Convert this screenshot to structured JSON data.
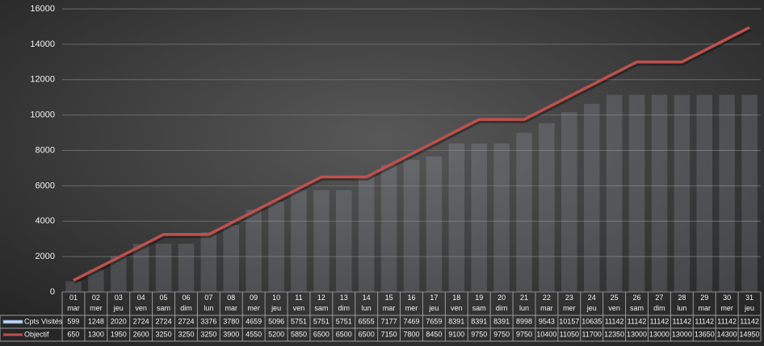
{
  "chart_data": {
    "type": "bar-line",
    "categories": [
      "01 mar",
      "02 mer",
      "03 jeu",
      "04 ven",
      "05 sam",
      "06 dim",
      "07 lun",
      "08 mar",
      "09 mer",
      "10 jeu",
      "11 ven",
      "12 sam",
      "13 dim",
      "14 lun",
      "15 mar",
      "16 mer",
      "17 jeu",
      "18 ven",
      "19 sam",
      "20 dim",
      "21 lun",
      "22 mar",
      "23 mer",
      "24 jeu",
      "25 ven",
      "26 sam",
      "27 dim",
      "28 lun",
      "29 mar",
      "30 mer",
      "31 jeu"
    ],
    "series": [
      {
        "name": "Cpts Visités",
        "type": "bar",
        "color": "#c9d6e6",
        "values": [
          599,
          1248,
          2020,
          2724,
          2724,
          2724,
          3376,
          3780,
          4659,
          5096,
          5751,
          5751,
          5751,
          6555,
          7177,
          7469,
          7659,
          8391,
          8391,
          8391,
          8998,
          9543,
          10157,
          10635,
          11142,
          11142,
          11142,
          11142,
          11142,
          11142,
          11142
        ]
      },
      {
        "name": "Objectif",
        "type": "line",
        "color": "#c0504d",
        "values": [
          650,
          1300,
          1950,
          2600,
          3250,
          3250,
          3250,
          3900,
          4550,
          5200,
          5850,
          6500,
          6500,
          6500,
          7150,
          7800,
          8450,
          9100,
          9750,
          9750,
          9750,
          10400,
          11050,
          11700,
          12350,
          13000,
          13000,
          13000,
          13650,
          14300,
          14950
        ]
      }
    ],
    "ylim": [
      0,
      16000
    ],
    "yticks": [
      0,
      2000,
      4000,
      6000,
      8000,
      10000,
      12000,
      14000,
      16000
    ],
    "grid": true,
    "data_table": true
  }
}
